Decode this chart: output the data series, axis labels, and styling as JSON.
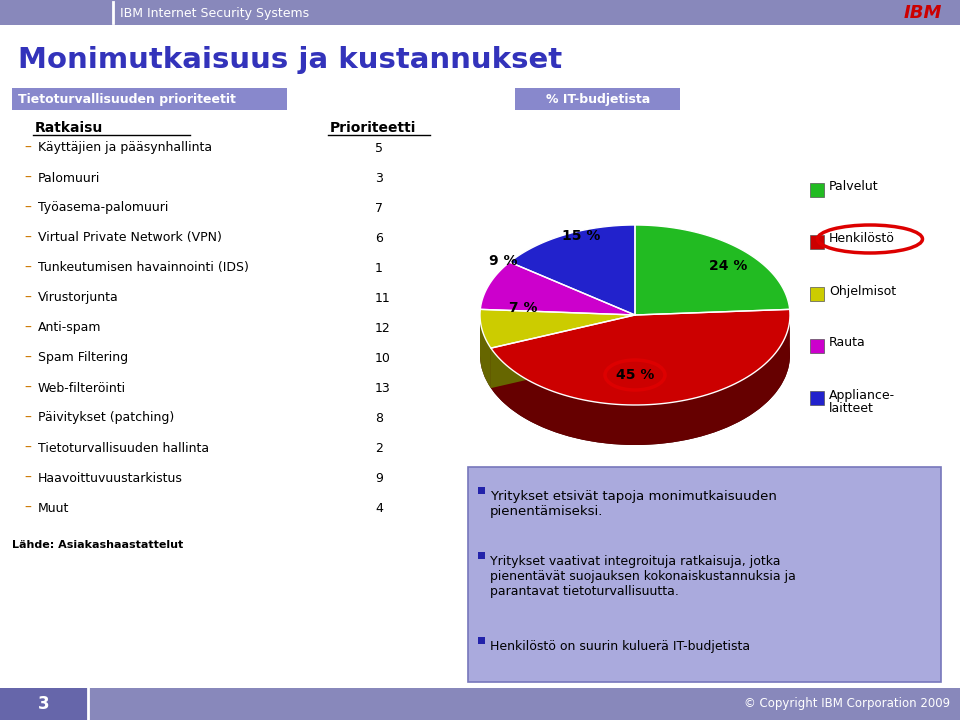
{
  "title": "Monimutkaisuus ja kustannukset",
  "header_bar": "IBM Internet Security Systems",
  "left_box_title": "Tietoturvallisuuden prioriteetit",
  "right_box_title": "% IT-budjetista",
  "col_header_left": "Ratkaisu",
  "col_header_right": "Prioriteetti",
  "items": [
    [
      "Käyttäjien ja pääsynhallinta",
      "5"
    ],
    [
      "Palomuuri",
      "3"
    ],
    [
      "Työasema-palomuuri",
      "7"
    ],
    [
      "Virtual Private Network (VPN)",
      "6"
    ],
    [
      "Tunkeutumisen havainnointi (IDS)",
      "1"
    ],
    [
      "Virustorjunta",
      "11"
    ],
    [
      "Anti-spam",
      "12"
    ],
    [
      "Spam Filtering",
      "10"
    ],
    [
      "Web-filteröinti",
      "13"
    ],
    [
      "Päivitykset (patching)",
      "8"
    ],
    [
      "Tietoturvallisuuden hallinta",
      "2"
    ],
    [
      "Haavoittuvuustarkistus",
      "9"
    ],
    [
      "Muut",
      "4"
    ]
  ],
  "source": "Lähde: Asiakashaastattelut",
  "page_number": "3",
  "pie_labels": [
    "Palvelut",
    "Henkilöstö",
    "Ohjelmisot",
    "Rauta",
    "Appliance-\nlaitteet"
  ],
  "pie_values": [
    24,
    45,
    7,
    9,
    15
  ],
  "pie_colors": [
    "#22bb22",
    "#cc0000",
    "#cccc00",
    "#cc00cc",
    "#2222cc"
  ],
  "pie_dark_colors": [
    "#116611",
    "#660000",
    "#666600",
    "#660066",
    "#111166"
  ],
  "pie_pcts": [
    "24 %",
    "45 %",
    "7 %",
    "9 %",
    "15 %"
  ],
  "bullet_points": [
    "Yritykset etsivät tapoja monimutkaisuuden\npienentämiseksi.",
    "Yritykset vaativat integroituja ratkaisuja, jotka\npienentävät suojauksen kokonaiskustannuksia ja\nparantavat tietoturvallisuutta.",
    "Henkilöstö on suurin kuluerä IT-budjetista"
  ],
  "footer_right": "© Copyright IBM Corporation 2009",
  "bg_color": "#ffffff",
  "header_bg": "#8888bb",
  "left_label_color": "#cc7700",
  "box_title_bg": "#8888cc",
  "bullet_box_bg": "#aaaadd",
  "footer_bg": "#8888bb",
  "footer_dark_bg": "#6666aa"
}
